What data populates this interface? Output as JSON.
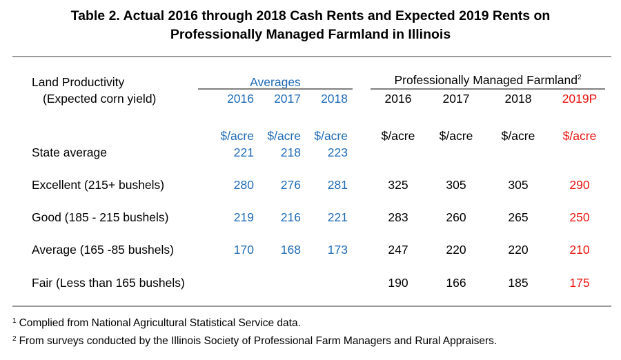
{
  "title": {
    "line1": "Table 2.  Actual 2016 through 2018 Cash Rents and Expected 2019 Rents on",
    "line2": "Professionally Managed Farmland in Illinois"
  },
  "header": {
    "land_label_line1": "Land Productivity",
    "land_label_line2": "(Expected corn yield)",
    "averages_group": "Averages",
    "pmf_group": "Professionally Managed Farmland",
    "pmf_sup": "2",
    "avg_years": [
      "2016",
      "2017",
      "2018"
    ],
    "pmf_years": [
      "2016",
      "2017",
      "2018",
      "2019P"
    ],
    "unit": "$/acre"
  },
  "rows": [
    {
      "label": "State average",
      "avg": [
        "221",
        "218",
        "223"
      ],
      "pmf": [
        "",
        "",
        "",
        ""
      ]
    },
    {
      "label": "Excellent (215+ bushels)",
      "avg": [
        "280",
        "276",
        "281"
      ],
      "pmf": [
        "325",
        "305",
        "305",
        "290"
      ]
    },
    {
      "label": "Good (185 - 215 bushels)",
      "avg": [
        "219",
        "216",
        "221"
      ],
      "pmf": [
        "283",
        "260",
        "265",
        "250"
      ]
    },
    {
      "label": "Average (165 -85 bushels)",
      "avg": [
        "170",
        "168",
        "173"
      ],
      "pmf": [
        "247",
        "220",
        "220",
        "210"
      ]
    },
    {
      "label": "Fair (Less than 165 bushels)",
      "avg": [
        "",
        "",
        ""
      ],
      "pmf": [
        "190",
        "166",
        "185",
        "175"
      ]
    }
  ],
  "footnotes": [
    {
      "num": "1",
      "text": "Complied from National Agricultural Statistical Service data."
    },
    {
      "num": "2",
      "text": "From surveys conducted by the Illinois Society of Professional Farm Managers and Rural Appraisers."
    }
  ],
  "colors": {
    "averages": "#1f6bb6",
    "projection": "#e8130f"
  }
}
